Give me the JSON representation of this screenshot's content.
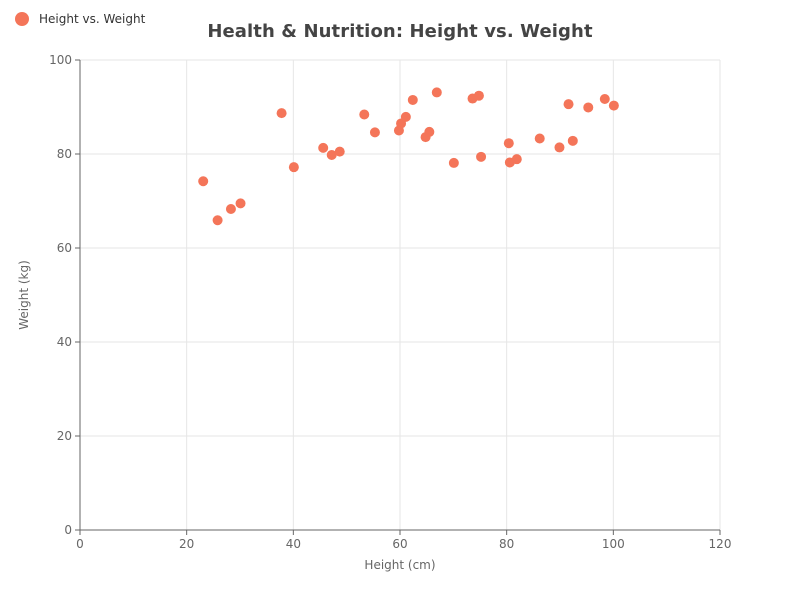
{
  "legend": {
    "label": "Height vs. Weight"
  },
  "colors": {
    "point": "#f47559",
    "grid": "#e6e6e6",
    "axis": "#666666"
  },
  "chart_data": {
    "type": "scatter",
    "title": "Health & Nutrition: Height vs. Weight",
    "xlabel": "Height (cm)",
    "ylabel": "Weight (kg)",
    "xlim": [
      0,
      120
    ],
    "ylim": [
      0,
      100
    ],
    "xticks": [
      0,
      20,
      40,
      60,
      80,
      100,
      120
    ],
    "yticks": [
      0,
      20,
      40,
      60,
      80,
      100
    ],
    "grid": true,
    "legend_position": "top-left",
    "series": [
      {
        "name": "Height vs. Weight",
        "points": [
          [
            23.1,
            74.2
          ],
          [
            25.8,
            65.9
          ],
          [
            28.3,
            68.3
          ],
          [
            30.1,
            69.5
          ],
          [
            37.8,
            88.7
          ],
          [
            40.1,
            77.2
          ],
          [
            45.6,
            81.3
          ],
          [
            47.2,
            79.8
          ],
          [
            48.7,
            80.5
          ],
          [
            53.3,
            88.4
          ],
          [
            55.3,
            84.6
          ],
          [
            59.8,
            85.0
          ],
          [
            60.2,
            86.5
          ],
          [
            61.1,
            87.9
          ],
          [
            62.4,
            91.5
          ],
          [
            64.8,
            83.6
          ],
          [
            65.5,
            84.7
          ],
          [
            66.9,
            93.1
          ],
          [
            70.1,
            78.1
          ],
          [
            73.6,
            91.8
          ],
          [
            74.8,
            92.4
          ],
          [
            75.2,
            79.4
          ],
          [
            80.4,
            82.3
          ],
          [
            80.6,
            78.2
          ],
          [
            81.9,
            78.9
          ],
          [
            86.2,
            83.3
          ],
          [
            89.9,
            81.4
          ],
          [
            91.6,
            90.6
          ],
          [
            92.4,
            82.8
          ],
          [
            95.3,
            89.9
          ],
          [
            98.4,
            91.7
          ],
          [
            100.1,
            90.3
          ]
        ]
      }
    ]
  }
}
